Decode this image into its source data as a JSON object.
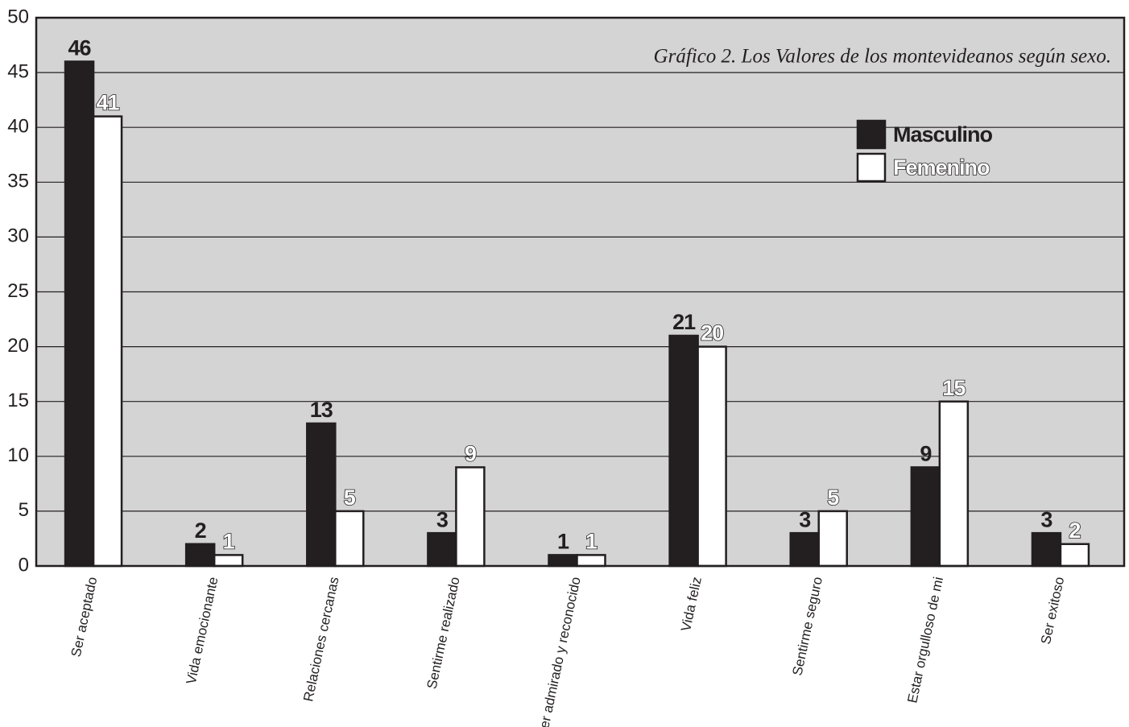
{
  "chart_data": {
    "type": "bar",
    "title": "Gráfico 2.  Los Valores de los montevideanos según sexo.",
    "categories": [
      "Ser aceptado",
      "Vida emocionante",
      "Relaciones cercanas",
      "Sentirme realizado",
      "Ser admirado y reconocido",
      "Vida feliz",
      "Sentirme seguro",
      "Estar orgulloso de mi",
      "Ser exitoso"
    ],
    "series": [
      {
        "name": "Masculino",
        "color": "#231f20",
        "values": [
          46,
          2,
          13,
          3,
          1,
          21,
          3,
          9,
          3
        ]
      },
      {
        "name": "Femenino",
        "color": "#ffffff",
        "values": [
          41,
          1,
          5,
          9,
          1,
          20,
          5,
          15,
          2
        ]
      }
    ],
    "ylim": [
      0,
      50
    ],
    "yticks": [
      0,
      5,
      10,
      15,
      20,
      25,
      30,
      35,
      40,
      45,
      50
    ],
    "grid": true,
    "legend": "upper right"
  }
}
